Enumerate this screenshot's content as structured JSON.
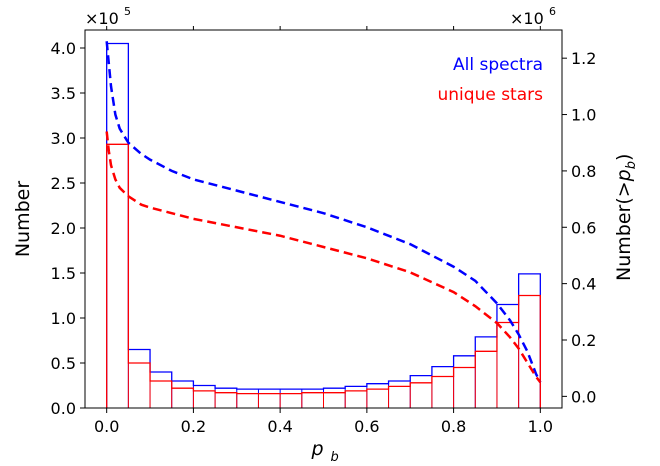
{
  "chart_data": {
    "type": "bar",
    "xlabel": "p",
    "xlabel_sub": "b",
    "ylabel_left": "Number",
    "ylabel_right_prefix": "Number(>",
    "ylabel_right_var": "p",
    "ylabel_right_sub": "b",
    "ylabel_right_suffix": ")",
    "left_multiplier": "×10",
    "left_multiplier_exp": "5",
    "right_multiplier": "×10",
    "right_multiplier_exp": "6",
    "xlim": [
      -0.05,
      1.05
    ],
    "ylim_left": [
      0,
      4.2
    ],
    "ylim_right": [
      -0.0413,
      1.3
    ],
    "x_ticks": [
      "0.0",
      "0.2",
      "0.4",
      "0.6",
      "0.8",
      "1.0"
    ],
    "left_ticks": [
      "0.0",
      "0.5",
      "1.0",
      "1.5",
      "2.0",
      "2.5",
      "3.0",
      "3.5",
      "4.0"
    ],
    "right_ticks": [
      "0.0",
      "0.2",
      "0.4",
      "0.6",
      "0.8",
      "1.0",
      "1.2"
    ],
    "bin_edges": [
      0,
      0.05,
      0.1,
      0.15,
      0.2,
      0.25,
      0.3,
      0.35,
      0.4,
      0.45,
      0.5,
      0.55,
      0.6,
      0.65,
      0.7,
      0.75,
      0.8,
      0.85,
      0.9,
      0.95,
      1.0
    ],
    "legend_position": "top-right",
    "histograms": [
      {
        "name": "All spectra",
        "color": "#0000ff",
        "values": [
          4.05,
          0.65,
          0.4,
          0.3,
          0.25,
          0.22,
          0.21,
          0.21,
          0.21,
          0.21,
          0.22,
          0.24,
          0.27,
          0.3,
          0.36,
          0.46,
          0.58,
          0.79,
          1.15,
          1.49
        ]
      },
      {
        "name": "unique stars",
        "color": "#ff0000",
        "values": [
          2.93,
          0.5,
          0.3,
          0.22,
          0.19,
          0.17,
          0.16,
          0.16,
          0.16,
          0.17,
          0.17,
          0.19,
          0.21,
          0.24,
          0.28,
          0.35,
          0.45,
          0.63,
          0.95,
          1.25
        ]
      }
    ],
    "cumulative": [
      {
        "name": "All spectra",
        "color": "#0000ff",
        "x": [
          0.0,
          0.005,
          0.01,
          0.02,
          0.03,
          0.05,
          0.08,
          0.1,
          0.15,
          0.2,
          0.3,
          0.4,
          0.5,
          0.6,
          0.7,
          0.8,
          0.85,
          0.9,
          0.93,
          0.95,
          0.97,
          0.99,
          1.0
        ],
        "values": [
          1.26,
          1.18,
          1.1,
          1.0,
          0.95,
          0.9,
          0.86,
          0.84,
          0.8,
          0.77,
          0.73,
          0.69,
          0.65,
          0.6,
          0.54,
          0.46,
          0.41,
          0.33,
          0.27,
          0.22,
          0.16,
          0.08,
          0.05
        ]
      },
      {
        "name": "unique stars",
        "color": "#ff0000",
        "x": [
          0.0,
          0.005,
          0.01,
          0.02,
          0.03,
          0.05,
          0.08,
          0.1,
          0.15,
          0.2,
          0.3,
          0.4,
          0.5,
          0.6,
          0.7,
          0.8,
          0.85,
          0.9,
          0.93,
          0.95,
          0.97,
          0.99,
          1.0
        ],
        "values": [
          0.94,
          0.87,
          0.82,
          0.77,
          0.74,
          0.71,
          0.68,
          0.67,
          0.65,
          0.63,
          0.6,
          0.57,
          0.53,
          0.49,
          0.44,
          0.37,
          0.32,
          0.26,
          0.21,
          0.17,
          0.12,
          0.07,
          0.05
        ]
      }
    ]
  }
}
